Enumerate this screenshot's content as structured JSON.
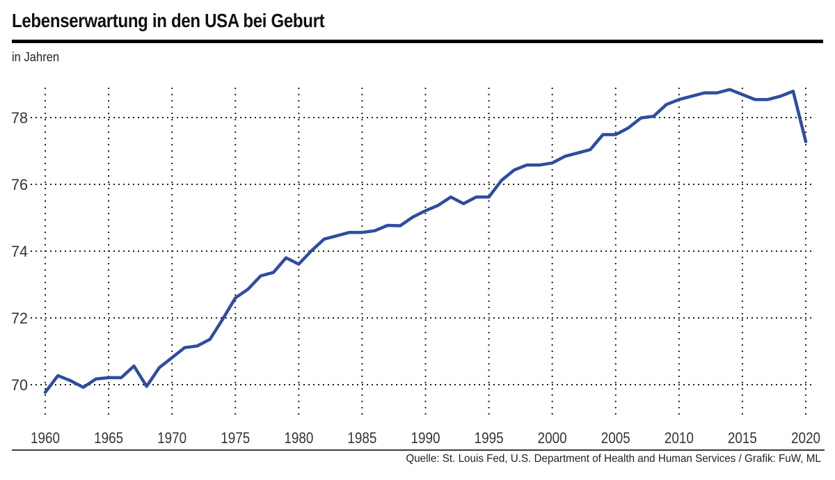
{
  "header": {
    "title": "Lebenserwartung in den USA bei Geburt",
    "subtitle": "in Jahren"
  },
  "footer": {
    "source": "Quelle: St. Louis Fed, U.S. Department of Health and Human Services / Grafik: FuW, ML"
  },
  "colors": {
    "line": "#2f4d9e",
    "grid": "#1c1c1c",
    "tick_label": "#333333",
    "rule": "#000000"
  },
  "chart_data": {
    "type": "line",
    "title": "Lebenserwartung in den USA bei Geburt",
    "ylabel": "in Jahren",
    "xlabel": "",
    "grid": "dotted",
    "legend": "none",
    "xlim": [
      1960,
      2020
    ],
    "ylim": [
      69,
      79
    ],
    "x_ticks": [
      1960,
      1965,
      1970,
      1975,
      1980,
      1985,
      1990,
      1995,
      2000,
      2005,
      2010,
      2015,
      2020
    ],
    "y_ticks": [
      70,
      72,
      74,
      76,
      78
    ],
    "series_name": "Lebenserwartung in den USA bei Geburt (Jahre)",
    "x": [
      1960,
      1961,
      1962,
      1963,
      1964,
      1965,
      1966,
      1967,
      1968,
      1969,
      1970,
      1971,
      1972,
      1973,
      1974,
      1975,
      1976,
      1977,
      1978,
      1979,
      1980,
      1981,
      1982,
      1983,
      1984,
      1985,
      1986,
      1987,
      1988,
      1989,
      1990,
      1991,
      1992,
      1993,
      1994,
      1995,
      1996,
      1997,
      1998,
      1999,
      2000,
      2001,
      2002,
      2003,
      2004,
      2005,
      2006,
      2007,
      2008,
      2009,
      2010,
      2011,
      2012,
      2013,
      2014,
      2015,
      2016,
      2017,
      2018,
      2019,
      2020
    ],
    "values": [
      69.77,
      70.27,
      70.12,
      69.92,
      70.17,
      70.21,
      70.21,
      70.56,
      69.95,
      70.51,
      70.81,
      71.11,
      71.16,
      71.36,
      71.96,
      72.6,
      72.86,
      73.26,
      73.36,
      73.8,
      73.61,
      74.01,
      74.36,
      74.46,
      74.56,
      74.56,
      74.61,
      74.77,
      74.76,
      75.02,
      75.21,
      75.37,
      75.62,
      75.42,
      75.62,
      75.62,
      76.12,
      76.43,
      76.58,
      76.58,
      76.64,
      76.84,
      76.94,
      77.04,
      77.49,
      77.49,
      77.69,
      77.99,
      78.04,
      78.39,
      78.54,
      78.64,
      78.74,
      78.74,
      78.84,
      78.69,
      78.54,
      78.54,
      78.64,
      78.79,
      77.28
    ],
    "line_color": "#2f4d9e"
  }
}
